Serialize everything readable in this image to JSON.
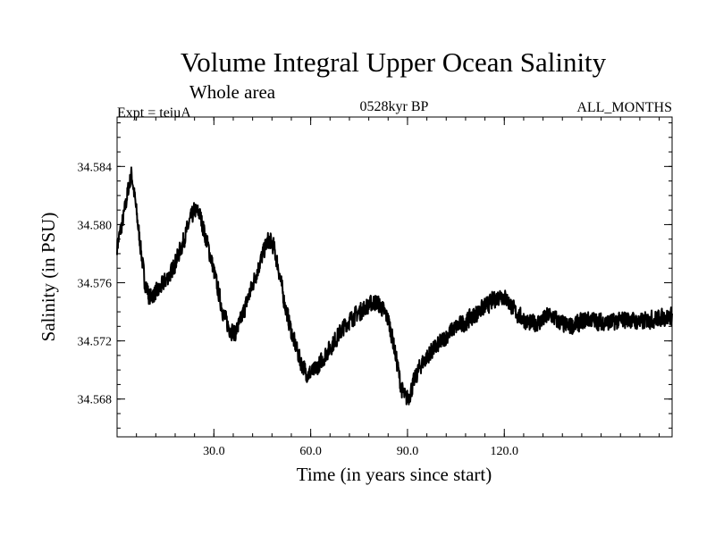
{
  "chart_data": {
    "type": "line",
    "title": "Volume Integral Upper Ocean Salinity",
    "subtitle": "Whole area",
    "experiment_label": "Expt = teiuA",
    "period_label": "0528kyr BP",
    "months_label": "ALL_MONTHS",
    "xlabel": "Time (in years since start)",
    "ylabel": "Salinity (in PSU)",
    "xlim": [
      0,
      172
    ],
    "ylim": [
      34.5654,
      34.5874
    ],
    "x_ticks": [
      {
        "value": 30,
        "label": "30.0"
      },
      {
        "value": 60,
        "label": "60.0"
      },
      {
        "value": 90,
        "label": "90.0"
      },
      {
        "value": 120,
        "label": "120.0"
      }
    ],
    "y_ticks": [
      {
        "value": 34.568,
        "label": "34.568"
      },
      {
        "value": 34.572,
        "label": "34.572"
      },
      {
        "value": 34.576,
        "label": "34.576"
      },
      {
        "value": 34.58,
        "label": "34.580"
      },
      {
        "value": 34.584,
        "label": "34.584"
      }
    ],
    "x_minor_step": 6,
    "y_minor_step": 0.001,
    "series": [
      {
        "name": "Salinity",
        "color": "#000000",
        "points_per_year": 12,
        "envelope": {
          "x": [
            0,
            1,
            2,
            3.5,
            4.5,
            5.5,
            7,
            8.5,
            10,
            13,
            17,
            20,
            22.5,
            24,
            25.5,
            27,
            29,
            31,
            33,
            35,
            36.5,
            38,
            41,
            44,
            46,
            47,
            48.5,
            50,
            52,
            54.5,
            57,
            59,
            61,
            63,
            65,
            68,
            71,
            74,
            77,
            80,
            82,
            84,
            85.5,
            87,
            88,
            89.5,
            90.5,
            92,
            94,
            97,
            100,
            104,
            108,
            112,
            116,
            119,
            121,
            124,
            128,
            131,
            134,
            137,
            140,
            143,
            146,
            150,
            154,
            158,
            162,
            166,
            169,
            172
          ],
          "y": [
            34.5785,
            34.5795,
            34.5805,
            34.5825,
            34.5835,
            34.5818,
            34.579,
            34.5762,
            34.575,
            34.5755,
            34.5768,
            34.5785,
            34.5802,
            34.581,
            34.5808,
            34.5795,
            34.5778,
            34.5758,
            34.5738,
            34.5728,
            34.5725,
            34.5732,
            34.5752,
            34.5772,
            34.5785,
            34.579,
            34.5785,
            34.577,
            34.5745,
            34.5722,
            34.5705,
            34.5697,
            34.5699,
            34.5705,
            34.5712,
            34.5722,
            34.5732,
            34.5738,
            34.5743,
            34.5747,
            34.5743,
            34.5735,
            34.572,
            34.5702,
            34.5688,
            34.568,
            34.5682,
            34.5692,
            34.5703,
            34.5712,
            34.5718,
            34.5728,
            34.5733,
            34.574,
            34.5747,
            34.5752,
            34.5748,
            34.5738,
            34.5732,
            34.5733,
            34.5738,
            34.5733,
            34.573,
            34.5732,
            34.5735,
            34.5733,
            34.5733,
            34.5735,
            34.5733,
            34.5735,
            34.5736,
            34.5737
          ]
        },
        "noise_amplitude": 0.0009,
        "noise_seed": 7
      }
    ]
  }
}
